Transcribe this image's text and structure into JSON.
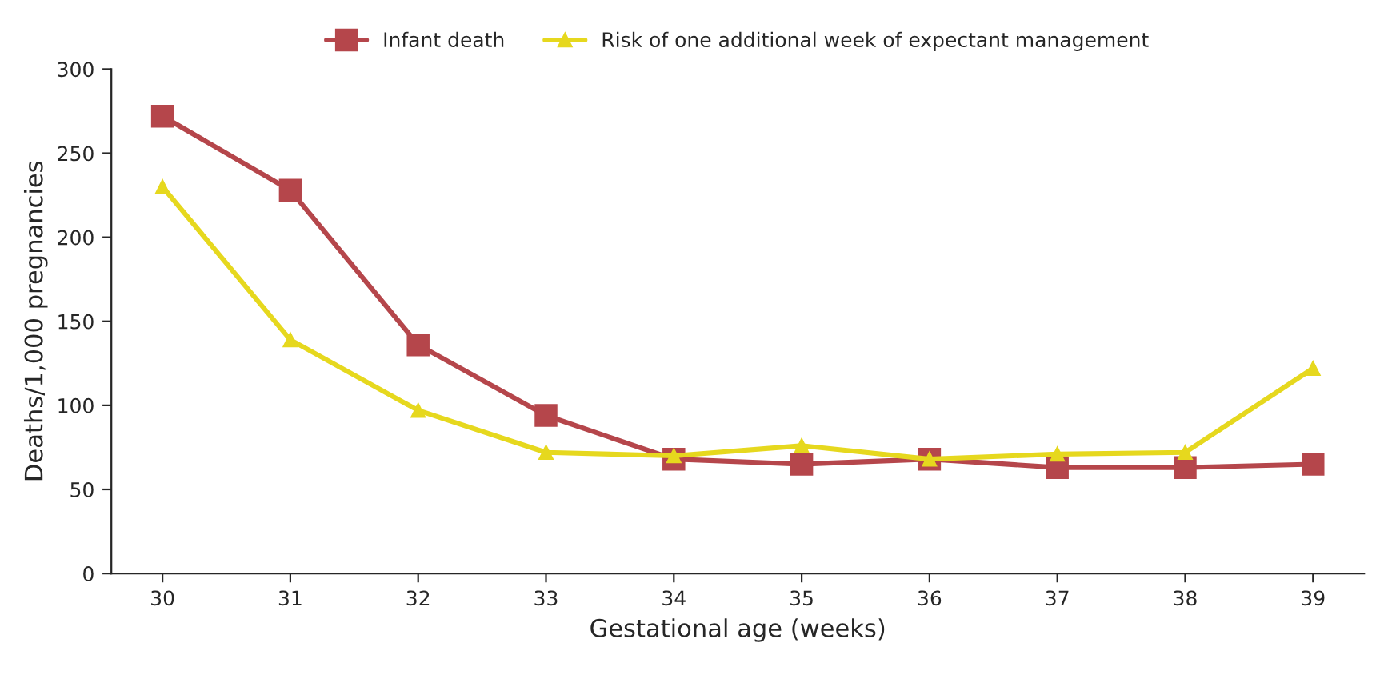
{
  "chart_data": {
    "type": "line",
    "xlabel": "Gestational age (weeks)",
    "ylabel": "Deaths/1,000 pregnancies",
    "categories": [
      "30",
      "31",
      "32",
      "33",
      "34",
      "35",
      "36",
      "37",
      "38",
      "39"
    ],
    "series": [
      {
        "name": "Infant death",
        "color": "#b5464b",
        "marker": "square",
        "values": [
          272,
          228,
          136,
          94,
          68,
          65,
          68,
          63,
          63,
          65
        ]
      },
      {
        "name": "Risk of one additional week of expectant management",
        "color": "#e6d81e",
        "marker": "triangle",
        "values": [
          230,
          139,
          97,
          72,
          70,
          76,
          68,
          71,
          72,
          122
        ]
      }
    ],
    "ylim": [
      0,
      300
    ],
    "yticks": [
      0,
      50,
      100,
      150,
      200,
      250,
      300
    ],
    "grid": false,
    "legend": "top",
    "line_style": "solid"
  }
}
